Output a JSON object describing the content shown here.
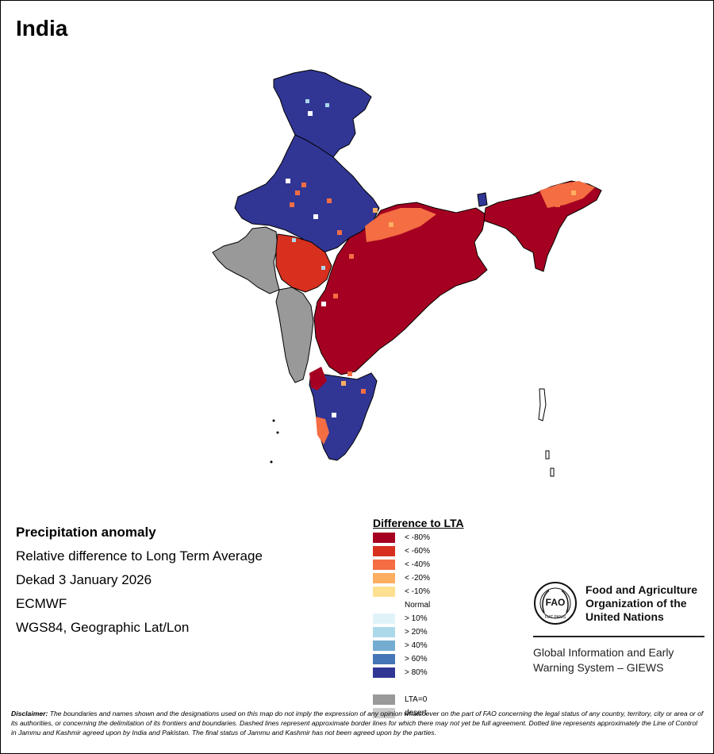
{
  "title": "India",
  "info": {
    "heading": "Precipitation anomaly",
    "line1": "Relative difference to Long Term Average",
    "line2": "Dekad 3 January 2026",
    "line3": "ECMWF",
    "line4": "WGS84, Geographic Lat/Lon"
  },
  "legend": {
    "title": "Difference to LTA",
    "items": [
      {
        "label": "< -80%",
        "color": "#a50021"
      },
      {
        "label": "< -60%",
        "color": "#d7301f"
      },
      {
        "label": "< -40%",
        "color": "#f46d43"
      },
      {
        "label": "< -20%",
        "color": "#fdae61"
      },
      {
        "label": "< -10%",
        "color": "#fee090"
      },
      {
        "label": "Normal",
        "color": "#ffffff"
      },
      {
        "label": "> 10%",
        "color": "#e0f3f8"
      },
      {
        "label": "> 20%",
        "color": "#abd9e9"
      },
      {
        "label": "> 40%",
        "color": "#74add1"
      },
      {
        "label": "> 60%",
        "color": "#4575b4"
      },
      {
        "label": "> 80%",
        "color": "#313695"
      },
      {
        "label": "",
        "color": "#ffffff"
      },
      {
        "label": "LTA=0",
        "color": "#999999"
      },
      {
        "label": "desert",
        "color": "#cccccc"
      }
    ]
  },
  "fao": {
    "logo_text": "FAO",
    "logo_motto": "FIAT PANIS",
    "name_line1": "Food and Agriculture",
    "name_line2": "Organization of the",
    "name_line3": "United Nations",
    "system_line1": "Global Information and Early",
    "system_line2": "Warning System – GIEWS"
  },
  "disclaimer": {
    "label": "Disclaimer:",
    "text": "The boundaries and names shown and the designations used on this map do not imply the expression of any opinion whatsoever on the part of FAO concerning the legal status of any country, territory, city or area or of its authorities, or concerning the delimitation of its frontiers and boundaries. Dashed lines represent approximate border lines for which there may not yet be full agreement. Dotted line represents approximately the Line of Control in Jammu and Kashmir agreed upon by India and Pakistan. The final status of Jammu and Kashmir has not been agreed upon by the parties."
  },
  "map_colors": {
    "very_dry": "#a50021",
    "dry": "#d7301f",
    "moderately_dry": "#f46d43",
    "slightly_dry": "#fdae61",
    "very_wet": "#313695",
    "wet": "#4575b4",
    "lta_zero": "#999999"
  }
}
